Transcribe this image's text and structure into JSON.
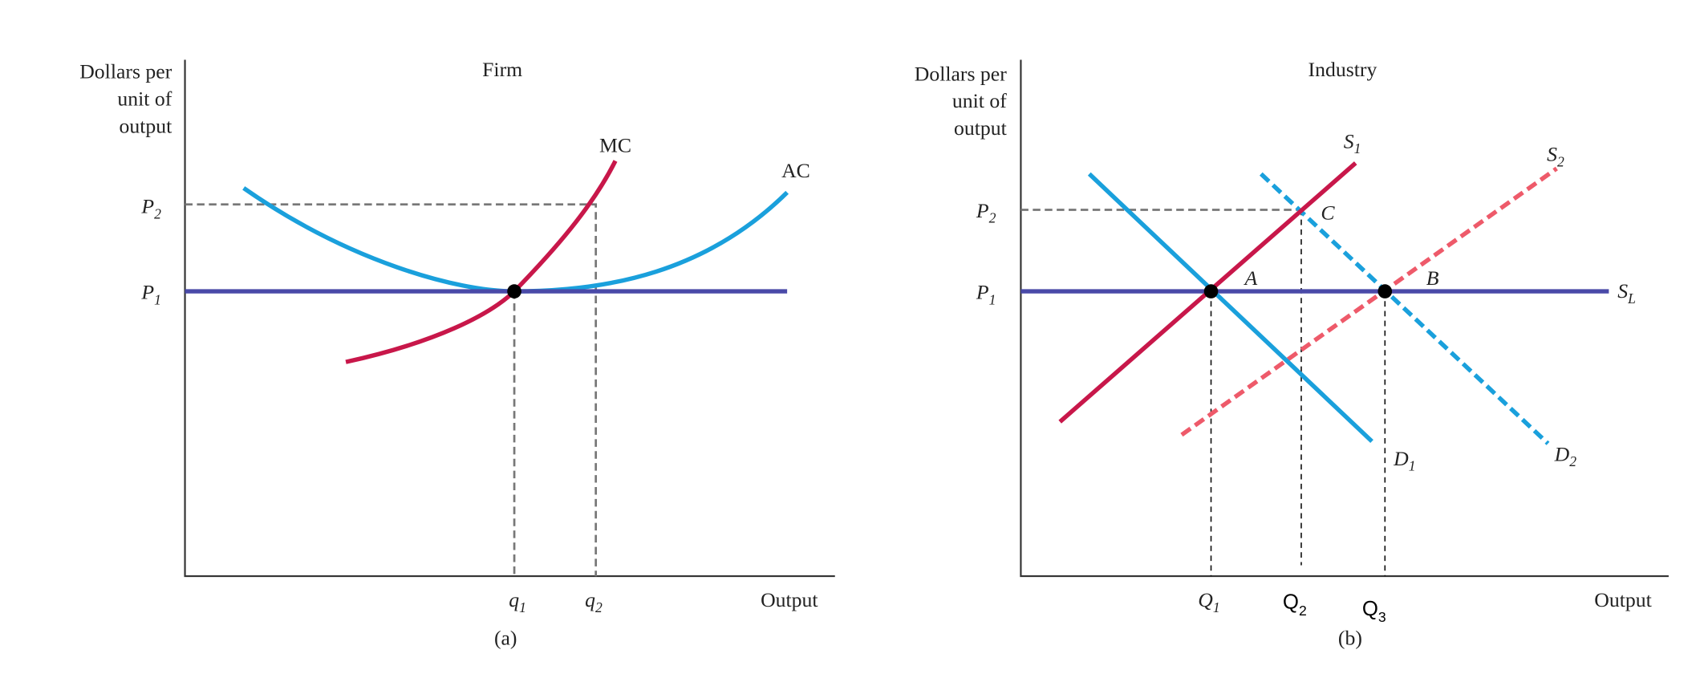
{
  "firm": {
    "title": "Firm",
    "y_label": [
      "Dollars per",
      "unit of",
      "output"
    ],
    "x_label": "Output",
    "caption": "(a)",
    "mc": "MC",
    "ac": "AC",
    "p2": {
      "base": "P",
      "sub": "2"
    },
    "p1": {
      "base": "P",
      "sub": "1"
    },
    "q1": {
      "base": "q",
      "sub": "1"
    },
    "q2": {
      "base": "q",
      "sub": "2"
    }
  },
  "industry": {
    "title": "Industry",
    "y_label": [
      "Dollars per",
      "unit of",
      "output"
    ],
    "x_label": "Output",
    "caption": "(b)",
    "s1": {
      "base": "S",
      "sub": "1"
    },
    "s2": {
      "base": "S",
      "sub": "2"
    },
    "d1": {
      "base": "D",
      "sub": "1"
    },
    "d2": {
      "base": "D",
      "sub": "2"
    },
    "sl": {
      "base": "S",
      "sub": "L"
    },
    "p2": {
      "base": "P",
      "sub": "2"
    },
    "p1": {
      "base": "P",
      "sub": "1"
    },
    "point_a": "A",
    "point_b": "B",
    "point_c": "C",
    "q1": {
      "base": "Q",
      "sub": "1"
    },
    "q2": {
      "base": "Q",
      "sub": "2"
    },
    "q3": {
      "base": "Q",
      "sub": "3"
    }
  }
}
